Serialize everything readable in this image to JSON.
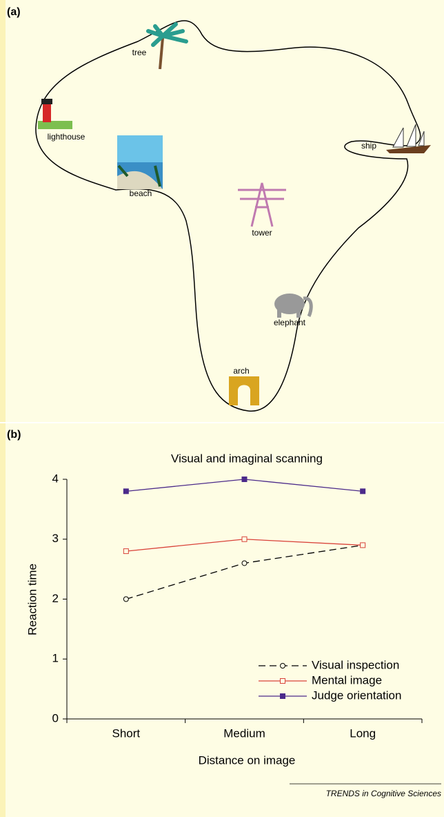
{
  "panel_a": {
    "label": "(a)",
    "landmarks": [
      "tree",
      "lighthouse",
      "beach",
      "ship",
      "tower",
      "elephant",
      "arch"
    ]
  },
  "panel_b_label": "(b)",
  "chart_data": {
    "type": "line",
    "title": "Visual and imaginal scanning",
    "x_label": "Distance on image",
    "y_label": "Reaction time",
    "categories": [
      "Short",
      "Medium",
      "Long"
    ],
    "series": [
      {
        "name": "Visual inspection",
        "color": "#000000",
        "dash": "dashed",
        "marker": "open-circle",
        "values": [
          2.0,
          2.6,
          2.9
        ]
      },
      {
        "name": "Mental image",
        "color": "#d9423a",
        "dash": "solid",
        "marker": "open-square",
        "values": [
          2.8,
          3.0,
          2.9
        ]
      },
      {
        "name": "Judge orientation",
        "color": "#4b2a8a",
        "dash": "solid",
        "marker": "filled-square",
        "values": [
          3.8,
          4.0,
          3.8
        ]
      }
    ],
    "ylim": [
      0,
      4
    ],
    "yticks": [
      0,
      1,
      2,
      3,
      4
    ],
    "legend": "lower-right"
  },
  "footer": "TRENDS in Cognitive Sciences"
}
